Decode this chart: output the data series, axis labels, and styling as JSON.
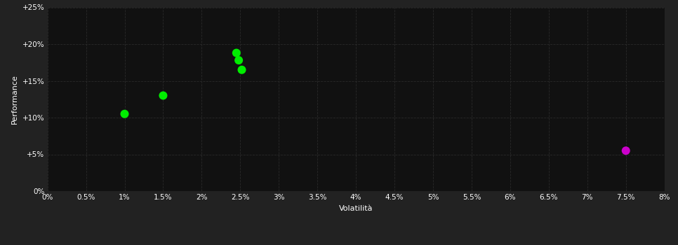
{
  "background_color": "#222222",
  "plot_bg_color": "#111111",
  "grid_color": "#2a2a2a",
  "text_color": "#ffffff",
  "xlabel": "Volatilità",
  "ylabel": "Performance",
  "xlim": [
    0,
    0.08
  ],
  "ylim": [
    0,
    0.25
  ],
  "xticks": [
    0.0,
    0.005,
    0.01,
    0.015,
    0.02,
    0.025,
    0.03,
    0.035,
    0.04,
    0.045,
    0.05,
    0.055,
    0.06,
    0.065,
    0.07,
    0.075,
    0.08
  ],
  "xtick_labels": [
    "0%",
    "0.5%",
    "1%",
    "1.5%",
    "2%",
    "2.5%",
    "3%",
    "3.5%",
    "4%",
    "4.5%",
    "5%",
    "5.5%",
    "6%",
    "6.5%",
    "7%",
    "7.5%",
    "8%"
  ],
  "yticks": [
    0,
    0.05,
    0.1,
    0.15,
    0.2,
    0.25
  ],
  "ytick_labels": [
    "0%",
    "+5%",
    "+10%",
    "+15%",
    "+20%",
    "+25%"
  ],
  "green_points": [
    [
      0.01,
      0.105
    ],
    [
      0.015,
      0.13
    ],
    [
      0.0245,
      0.188
    ],
    [
      0.0248,
      0.178
    ],
    [
      0.0252,
      0.165
    ]
  ],
  "green_color": "#00ee00",
  "magenta_point": [
    0.075,
    0.055
  ],
  "magenta_color": "#cc00cc",
  "marker_size": 5,
  "font_size_labels": 8,
  "font_size_ticks": 7.5
}
